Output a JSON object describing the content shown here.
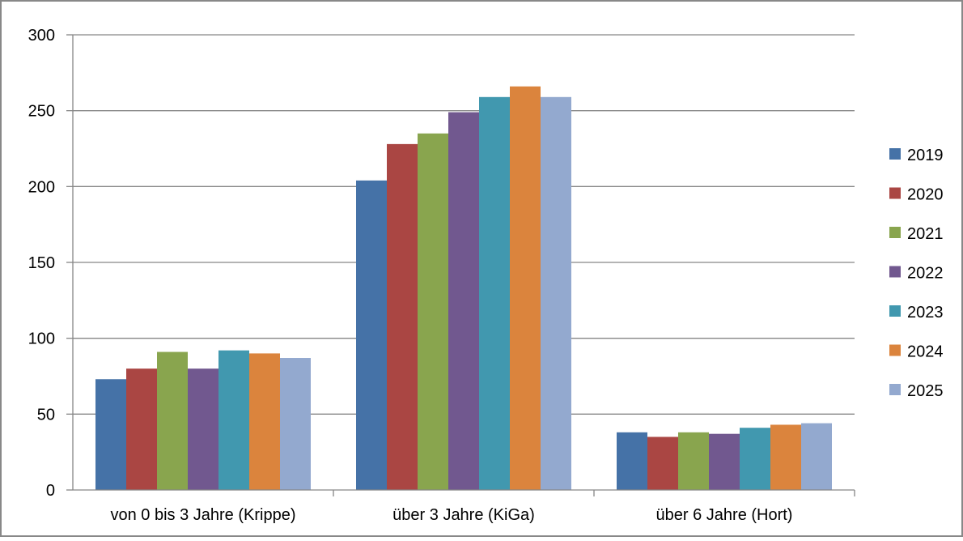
{
  "chart_data": {
    "type": "bar",
    "title": "",
    "xlabel": "",
    "ylabel": "",
    "categories": [
      "von 0 bis 3 Jahre (Krippe)",
      "über 3 Jahre (KiGa)",
      "über 6 Jahre (Hort)"
    ],
    "ylim": [
      0,
      300
    ],
    "yticks": [
      0,
      50,
      100,
      150,
      200,
      250,
      300
    ],
    "ytick_labels": [
      "0",
      "50",
      "100",
      "150",
      "200",
      "250",
      "300"
    ],
    "grid": true,
    "legend_position": "right",
    "series": [
      {
        "name": "2019",
        "color": "#4572A7",
        "values": [
          73,
          204,
          38
        ]
      },
      {
        "name": "2020",
        "color": "#AA4643",
        "values": [
          80,
          228,
          35
        ]
      },
      {
        "name": "2021",
        "color": "#89A54E",
        "values": [
          91,
          235,
          38
        ]
      },
      {
        "name": "2022",
        "color": "#71588F",
        "values": [
          80,
          249,
          37
        ]
      },
      {
        "name": "2023",
        "color": "#4198AF",
        "values": [
          92,
          259,
          41
        ]
      },
      {
        "name": "2024",
        "color": "#DB843D",
        "values": [
          90,
          266,
          43
        ]
      },
      {
        "name": "2025",
        "color": "#93A9CF",
        "values": [
          87,
          259,
          44
        ]
      }
    ]
  }
}
